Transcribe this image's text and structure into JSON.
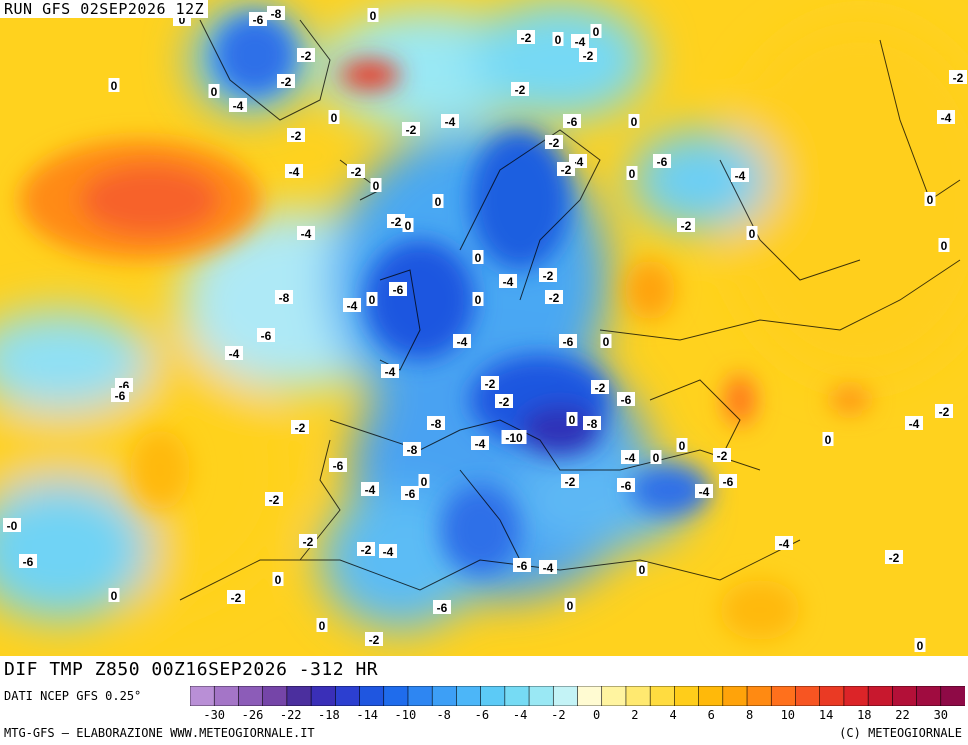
{
  "run_title": "RUN GFS 02SEP2026 12Z",
  "main_title": "DIF TMP Z850 00Z16SEP2026 -312 HR",
  "data_source": "DATI NCEP GFS 0.25°",
  "credit_left": "MTG-GFS – ELABORAZIONE WWW.METEOGIORNALE.IT",
  "credit_right": "(C) METEOGIORNALE",
  "colorbar": {
    "colors": [
      "#b98fd6",
      "#a475c7",
      "#8c5cb8",
      "#7545a8",
      "#4b2f9e",
      "#3a2fb8",
      "#2c3fd0",
      "#1f56e0",
      "#1f6cec",
      "#2e86f2",
      "#3d9ff6",
      "#4cb6f8",
      "#5ccaf6",
      "#76dbf4",
      "#9ae8f4",
      "#c4f3f6",
      "#fffbd2",
      "#fff4a0",
      "#ffe970",
      "#ffdc40",
      "#ffcd1a",
      "#ffb90a",
      "#ffa30a",
      "#ff8a12",
      "#ff701c",
      "#f75522",
      "#ea3a24",
      "#dc2428",
      "#c8182e",
      "#b31038",
      "#a00c40",
      "#8e0a46"
    ],
    "ticks": [
      "-30",
      "-26",
      "-22",
      "-18",
      "-14",
      "-10",
      "-8",
      "-6",
      "-4",
      "-2",
      "0",
      "2",
      "4",
      "6",
      "8",
      "10",
      "14",
      "18",
      "22",
      "30"
    ]
  },
  "contour_labels": [
    "-2",
    "-6",
    "-8",
    "0",
    "-2",
    "-2",
    "0",
    "-4",
    "-2",
    "0",
    "-4",
    "-2",
    "0",
    "-4",
    "0",
    "-2",
    "-4",
    "-2",
    "-2",
    "0",
    "-4",
    "0",
    "-2",
    "-6",
    "0",
    "-2",
    "-4",
    "-2",
    "-6",
    "0",
    "-4",
    "-2",
    "0",
    "0",
    "-2",
    "0",
    "0",
    "-2",
    "-4",
    "-2",
    "-4",
    "0",
    "-6",
    "-8",
    "0",
    "-4",
    "-6",
    "-4",
    "-6",
    "-6",
    "-4",
    "-2",
    "-2",
    "0",
    "-8",
    "-2",
    "-6",
    "-6",
    "0",
    "-8",
    "-10",
    "-4",
    "-8",
    "-2",
    "-6",
    "-4",
    "-6",
    "0",
    "-2",
    "-2",
    "-4",
    "0",
    "0",
    "-2",
    "-4",
    "-6",
    "-6",
    "-4",
    "-2",
    "0",
    "-0",
    "-6",
    "-2",
    "-2",
    "-4",
    "-6",
    "-4",
    "0",
    "0",
    "-2",
    "0",
    "0",
    "-6",
    "0",
    "-2",
    "-4",
    "-2",
    "0",
    "-4",
    "-2",
    "0",
    "0",
    "0"
  ],
  "boundaries_note": ""
}
